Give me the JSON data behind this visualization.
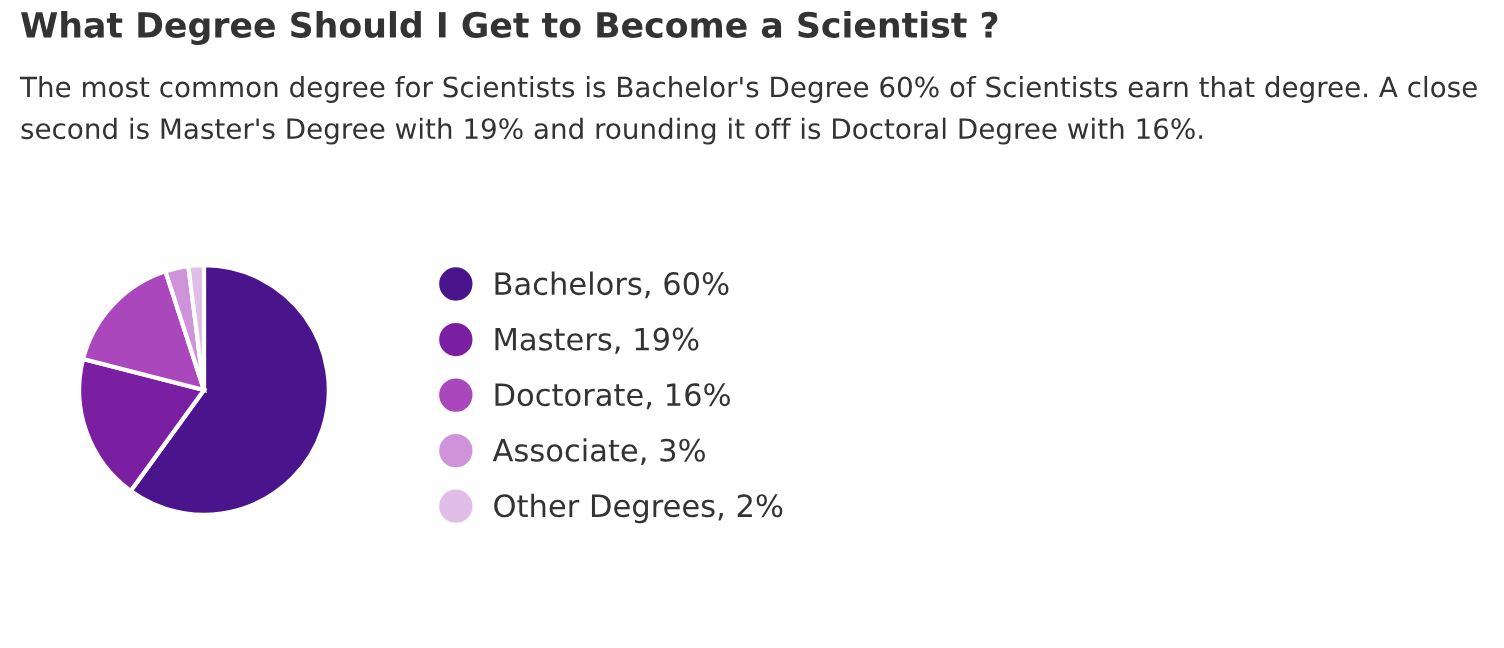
{
  "chart_data": {
    "type": "pie",
    "title": "What Degree Should I Get to Become a Scientist ?",
    "annotations": [
      "The most common degree for Scientists is Bachelor's Degree 60% of Scientists earn that degree. A close second is Master's Degree with 19% and rounding it off is Doctoral Degree with 16%."
    ],
    "categories": [
      "Bachelors, 60%",
      "Masters, 19%",
      "Doctorate, 16%",
      "Associate, 3%",
      "Other Degrees, 2%"
    ],
    "values": [
      60,
      19,
      16,
      3,
      2
    ],
    "colors": [
      "#4a148c",
      "#7b1fa2",
      "#ab47bc",
      "#ce93d8",
      "#e1bee7"
    ],
    "legend": "right"
  }
}
